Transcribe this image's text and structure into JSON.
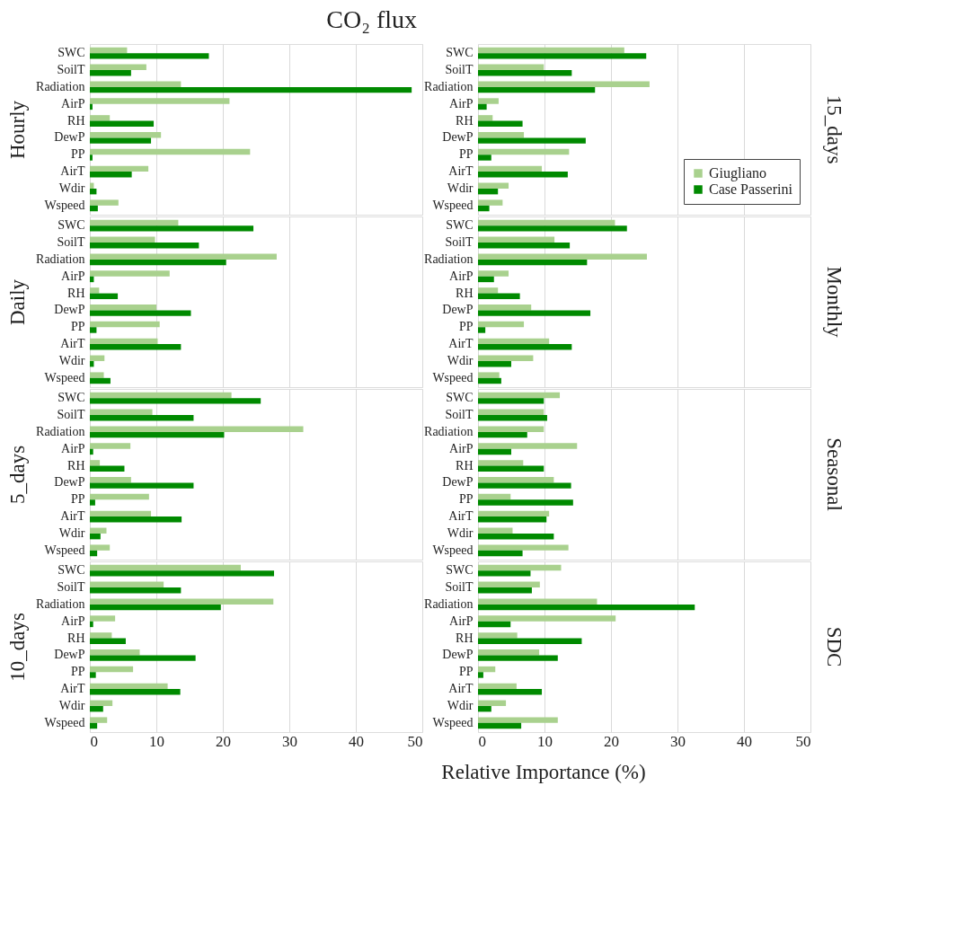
{
  "chart_data": [
    {
      "type": "bar",
      "orientation": "horizontal",
      "title": "CO₂ flux",
      "ylabel": "Hourly",
      "tick_labels": "y",
      "grid": "x",
      "xlim": [
        0,
        50
      ],
      "xticks": [
        0,
        10,
        20,
        30,
        40,
        50
      ],
      "categories": [
        "SWC",
        "SoilT",
        "Radiation",
        "AirP",
        "RH",
        "DewP",
        "PP",
        "AirT",
        "Wdir",
        "Wspeed"
      ],
      "series": [
        {
          "color": "#a9d18e",
          "values": [
            5.6,
            8.5,
            13.7,
            21.0,
            3.0,
            10.7,
            24.1,
            8.8,
            0.6,
            4.3
          ]
        },
        {
          "color": "#008a00",
          "values": [
            17.9,
            6.2,
            48.4,
            0.4,
            9.6,
            9.2,
            0.4,
            6.3,
            1.0,
            1.2
          ]
        }
      ]
    },
    {
      "type": "bar",
      "orientation": "horizontal",
      "ylabel": "15_days",
      "tick_labels": "y",
      "grid": "x",
      "legend": "bottom right",
      "xlim": [
        0,
        50
      ],
      "xticks": [
        0,
        10,
        20,
        30,
        40,
        50
      ],
      "categories": [
        "SWC",
        "SoilT",
        "Radiation",
        "AirP",
        "RH",
        "DewP",
        "PP",
        "AirT",
        "Wdir",
        "Wspeed"
      ],
      "series": [
        {
          "name": "Giugliano",
          "color": "#a9d18e",
          "values": [
            22.0,
            9.9,
            25.8,
            3.1,
            2.2,
            6.9,
            13.7,
            9.6,
            4.6,
            3.7
          ]
        },
        {
          "name": "Case Passerini",
          "color": "#008a00",
          "values": [
            25.3,
            14.1,
            17.6,
            1.3,
            6.7,
            16.2,
            2.0,
            13.5,
            3.0,
            1.7
          ]
        }
      ]
    },
    {
      "type": "bar",
      "orientation": "horizontal",
      "ylabel": "Daily",
      "tick_labels": "y",
      "grid": "x",
      "xlim": [
        0,
        50
      ],
      "xticks": [
        0,
        10,
        20,
        30,
        40,
        50
      ],
      "categories": [
        "SWC",
        "SoilT",
        "Radiation",
        "AirP",
        "RH",
        "DewP",
        "PP",
        "AirT",
        "Wdir",
        "Wspeed"
      ],
      "series": [
        {
          "color": "#a9d18e",
          "values": [
            13.3,
            9.8,
            28.1,
            12.0,
            1.4,
            10.0,
            10.5,
            10.2,
            2.2,
            2.1
          ]
        },
        {
          "color": "#008a00",
          "values": [
            24.6,
            16.4,
            20.5,
            0.6,
            4.2,
            15.2,
            1.0,
            13.7,
            0.6,
            3.1
          ]
        }
      ]
    },
    {
      "type": "bar",
      "orientation": "horizontal",
      "ylabel": "Monthly",
      "tick_labels": "y",
      "grid": "x",
      "xlim": [
        0,
        50
      ],
      "xticks": [
        0,
        10,
        20,
        30,
        40,
        50
      ],
      "categories": [
        "SWC",
        "SoilT",
        "Radiation",
        "AirP",
        "RH",
        "DewP",
        "PP",
        "AirT",
        "Wdir",
        "Wspeed"
      ],
      "series": [
        {
          "color": "#a9d18e",
          "values": [
            20.6,
            11.5,
            25.4,
            4.6,
            3.0,
            8.0,
            6.9,
            10.7,
            8.3,
            3.2
          ]
        },
        {
          "color": "#008a00",
          "values": [
            22.4,
            13.8,
            16.4,
            2.4,
            6.3,
            16.9,
            1.1,
            14.1,
            5.0,
            3.5
          ]
        }
      ]
    },
    {
      "type": "bar",
      "orientation": "horizontal",
      "ylabel": "5_days",
      "tick_labels": "y",
      "grid": "x",
      "xlim": [
        0,
        50
      ],
      "xticks": [
        0,
        10,
        20,
        30,
        40,
        50
      ],
      "categories": [
        "SWC",
        "SoilT",
        "Radiation",
        "AirP",
        "RH",
        "DewP",
        "PP",
        "AirT",
        "Wdir",
        "Wspeed"
      ],
      "series": [
        {
          "color": "#a9d18e",
          "values": [
            21.3,
            9.4,
            32.1,
            6.1,
            1.5,
            6.2,
            8.9,
            9.2,
            2.5,
            3.0
          ]
        },
        {
          "color": "#008a00",
          "values": [
            25.7,
            15.6,
            20.2,
            0.5,
            5.2,
            15.6,
            0.8,
            13.8,
            1.6,
            1.1
          ]
        }
      ]
    },
    {
      "type": "bar",
      "orientation": "horizontal",
      "ylabel": "Seasonal",
      "tick_labels": "y",
      "grid": "x",
      "xlim": [
        0,
        50
      ],
      "xticks": [
        0,
        10,
        20,
        30,
        40,
        50
      ],
      "categories": [
        "SWC",
        "SoilT",
        "Radiation",
        "AirP",
        "RH",
        "DewP",
        "PP",
        "AirT",
        "Wdir",
        "Wspeed"
      ],
      "series": [
        {
          "color": "#a9d18e",
          "values": [
            12.3,
            9.9,
            9.9,
            14.9,
            6.8,
            11.4,
            4.9,
            10.7,
            5.2,
            13.6
          ]
        },
        {
          "color": "#008a00",
          "values": [
            9.9,
            10.4,
            7.4,
            5.0,
            9.9,
            14.0,
            14.3,
            10.3,
            11.4,
            6.7
          ]
        }
      ]
    },
    {
      "type": "bar",
      "orientation": "horizontal",
      "ylabel": "10_days",
      "xlabel": "Relative Importance (%)",
      "grid": "x",
      "xlim": [
        0,
        50
      ],
      "xticks": [
        0,
        10,
        20,
        30,
        40,
        50
      ],
      "categories": [
        "SWC",
        "SoilT",
        "Radiation",
        "AirP",
        "RH",
        "DewP",
        "PP",
        "AirT",
        "Wdir",
        "Wspeed"
      ],
      "series": [
        {
          "color": "#a9d18e",
          "values": [
            22.7,
            11.1,
            27.6,
            3.8,
            3.3,
            7.5,
            6.5,
            11.7,
            3.4,
            2.6
          ]
        },
        {
          "color": "#008a00",
          "values": [
            27.7,
            13.7,
            19.7,
            0.5,
            5.4,
            15.9,
            0.9,
            13.6,
            2.0,
            1.1
          ]
        }
      ]
    },
    {
      "type": "bar",
      "orientation": "horizontal",
      "ylabel": "SDC",
      "grid": "x",
      "xlim": [
        0,
        50
      ],
      "xticks": [
        0,
        10,
        20,
        30,
        40,
        50
      ],
      "categories": [
        "SWC",
        "SoilT",
        "Radiation",
        "AirP",
        "RH",
        "DewP",
        "PP",
        "AirT",
        "Wdir",
        "Wspeed"
      ],
      "series": [
        {
          "color": "#a9d18e",
          "values": [
            12.5,
            9.3,
            17.9,
            20.7,
            5.9,
            9.2,
            2.6,
            5.8,
            4.2,
            12.0
          ]
        },
        {
          "color": "#008a00",
          "values": [
            7.9,
            8.1,
            32.6,
            4.9,
            15.6,
            12.0,
            0.8,
            9.6,
            2.0,
            6.5
          ]
        }
      ]
    }
  ]
}
